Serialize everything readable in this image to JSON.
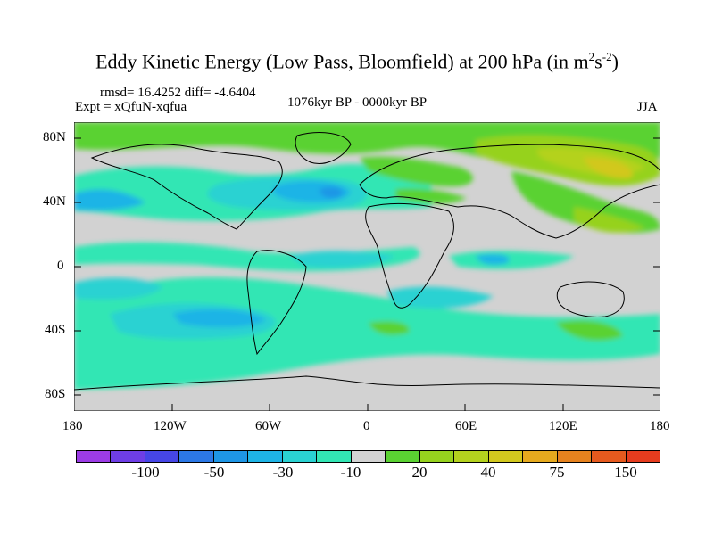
{
  "title": {
    "main": "Eddy Kinetic Energy (Low Pass, Bloomfield) at 200 hPa (in m",
    "sup1": "2",
    "mid": "s",
    "sup2": "-2",
    "end": ")"
  },
  "stats": {
    "rmsd_line": "rmsd= 16.4252 diff= -4.6404"
  },
  "expt": "Expt = xQfuN-xqfua",
  "period": "1076kyr BP - 0000kyr BP",
  "season": "JJA",
  "lat_ticks": [
    "80N",
    "40N",
    "0",
    "40S",
    "80S"
  ],
  "lon_ticks": [
    "180",
    "120W",
    "60W",
    "0",
    "60E",
    "120E",
    "180"
  ],
  "colorbar": {
    "colors": [
      "#9c3ce6",
      "#6e3ee6",
      "#4646e6",
      "#2c78e6",
      "#1e96e6",
      "#1eb4e6",
      "#2ad2d2",
      "#32e6b4",
      "#d2d2d2",
      "#5ad232",
      "#96d21e",
      "#b4d21e",
      "#d2c81e",
      "#e6aa1e",
      "#e6821e",
      "#e65a1e",
      "#e63c1e"
    ],
    "labels": [
      "-100",
      "-50",
      "-30",
      "-10",
      "20",
      "40",
      "75",
      "150"
    ]
  }
}
